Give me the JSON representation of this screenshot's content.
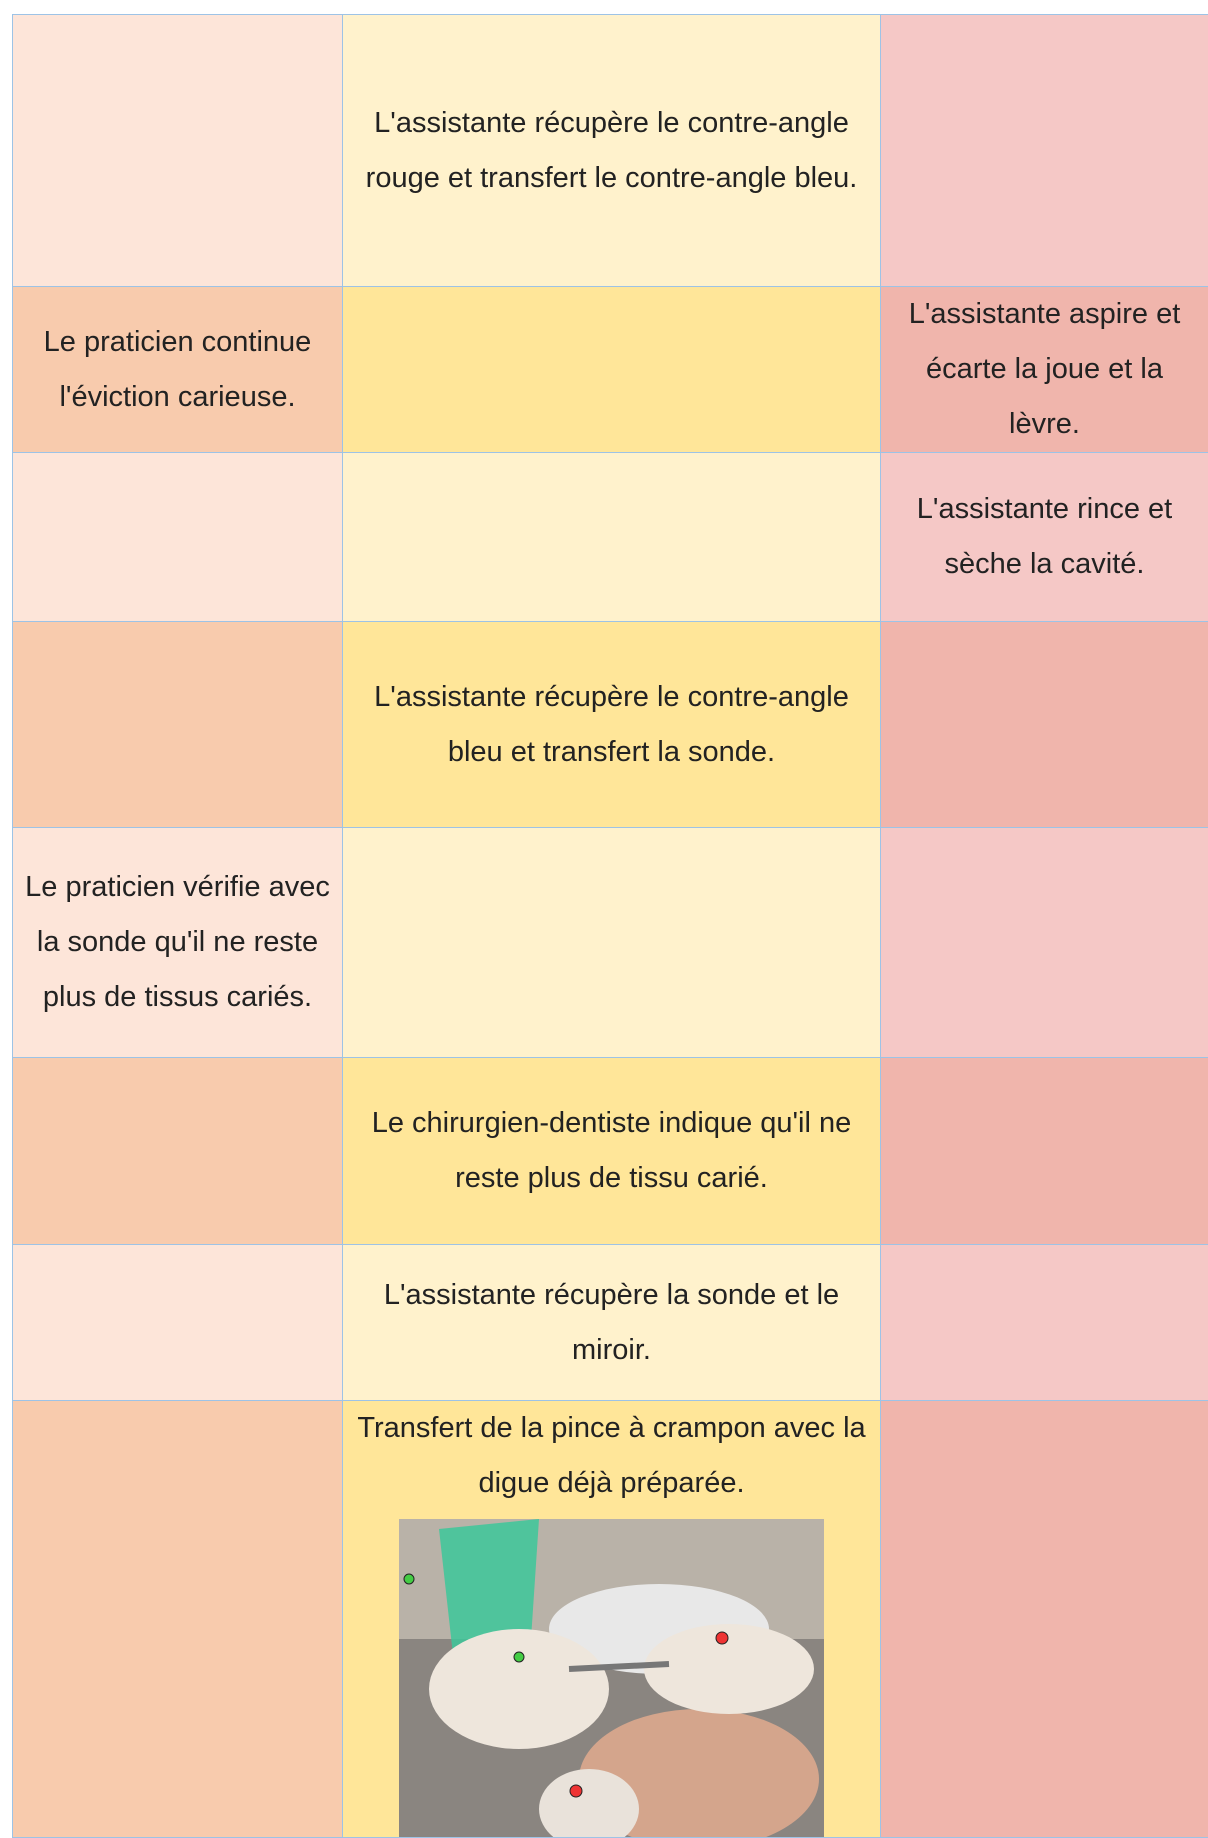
{
  "table": {
    "rows": [
      [
        null,
        "L'assistante récupère le contre-angle rouge et transfert le contre-angle bleu.",
        null
      ],
      [
        "Le praticien continue l'éviction carieuse.",
        null,
        "L'assistante aspire et écarte la joue et la lèvre."
      ],
      [
        null,
        null,
        "L'assistante rince et sèche la cavité."
      ],
      [
        null,
        "L'assistante récupère le contre-angle bleu et transfert la sonde.",
        null
      ],
      [
        "Le praticien vérifie avec la sonde qu'il ne reste plus de tissus cariés.",
        null,
        null
      ],
      [
        null,
        "Le chirurgien-dentiste indique qu'il ne reste plus de tissu carié.",
        null
      ],
      [
        null,
        "L'assistante récupère la sonde et le miroir.",
        null
      ],
      [
        null,
        "Transfert de la pince à crampon avec la digue déjà préparée.",
        null
      ]
    ]
  }
}
